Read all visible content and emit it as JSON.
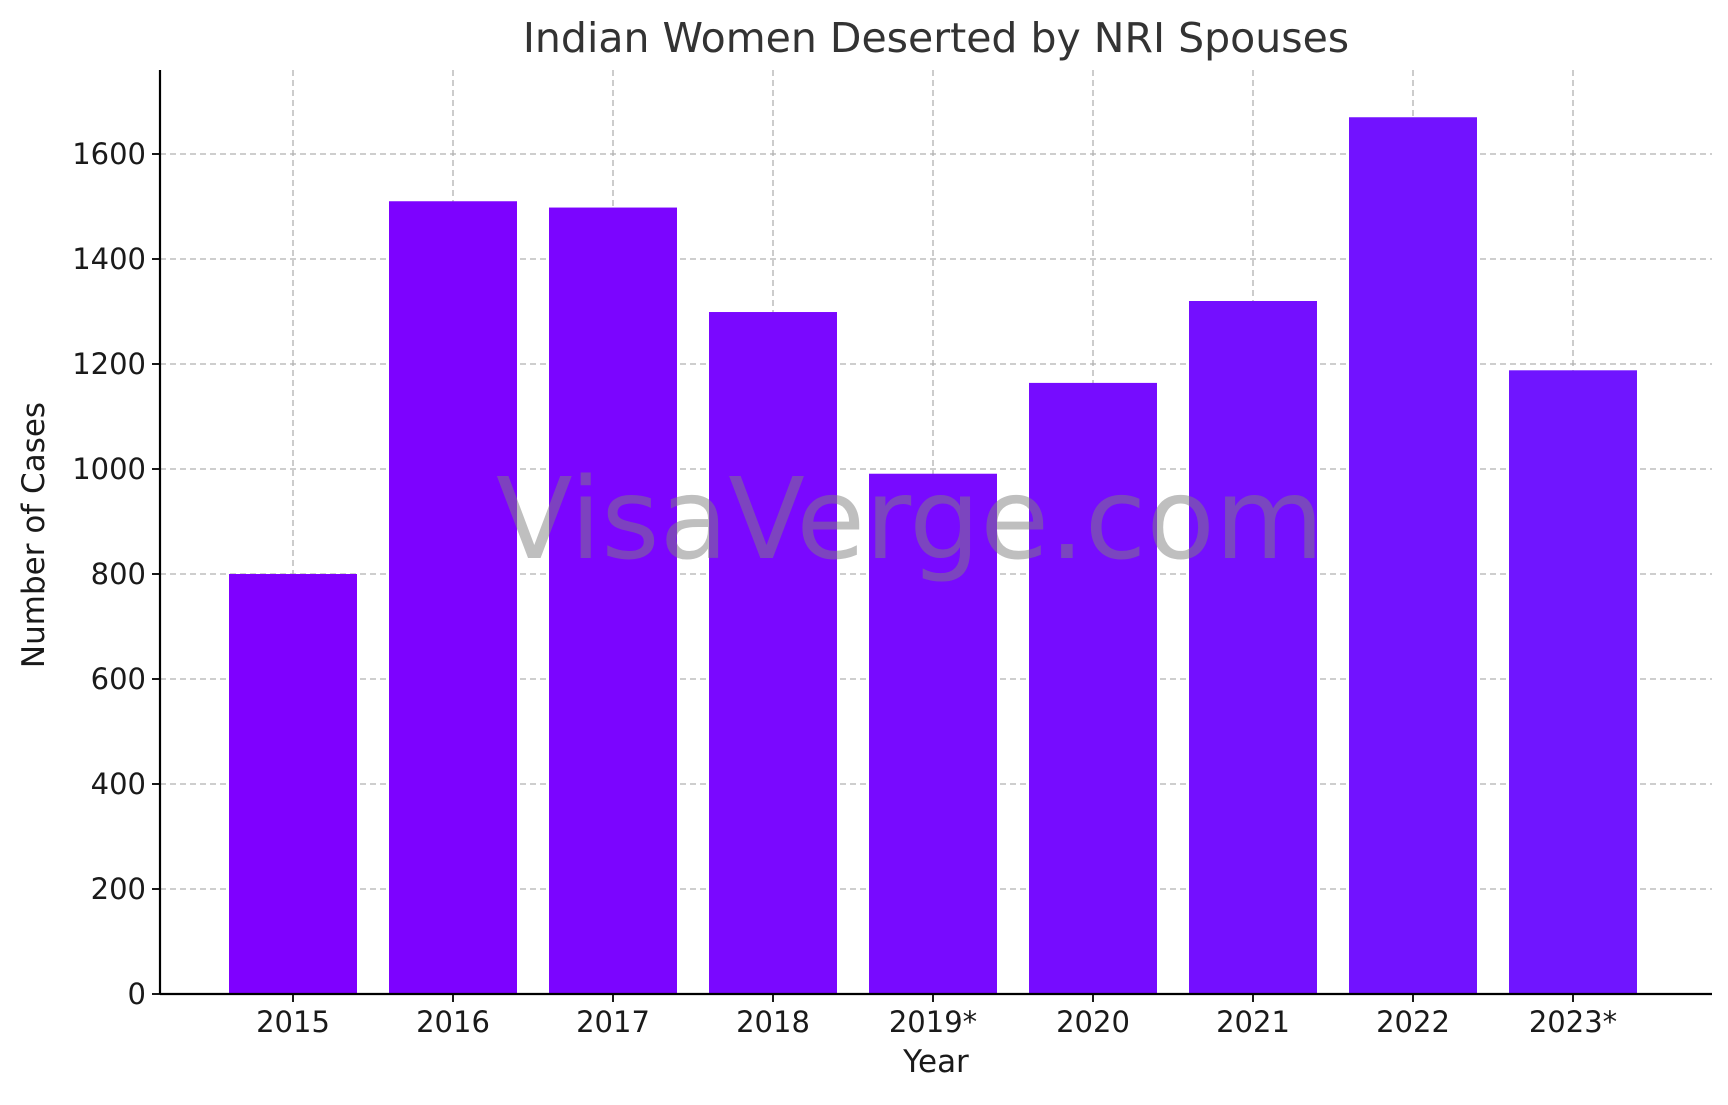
{
  "chart_data": {
    "type": "bar",
    "title": "Indian Women Deserted by NRI Spouses",
    "xlabel": "Year",
    "ylabel": "Number of Cases",
    "categories": [
      "2015",
      "2016",
      "2017",
      "2018",
      "2019*",
      "2020",
      "2021",
      "2022",
      "2023*"
    ],
    "values": [
      800,
      1510,
      1498,
      1299,
      991,
      1164,
      1320,
      1670,
      1188
    ],
    "bar_colors": [
      "#7f00ff",
      "#7d02ff",
      "#7b05ff",
      "#7a08ff",
      "#780aff",
      "#760cff",
      "#740fff",
      "#7212ff",
      "#7015ff"
    ],
    "ylim": [
      0,
      1760
    ],
    "yticks": [
      0,
      200,
      400,
      600,
      800,
      1000,
      1200,
      1400,
      1600
    ],
    "grid": true,
    "watermark": "VisaVerge.com"
  }
}
